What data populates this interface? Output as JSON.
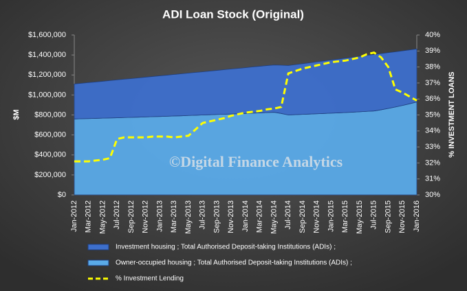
{
  "chart_data": {
    "type": "stacked_area_line",
    "title": "ADI Loan Stock (Original)",
    "y_label": "$M",
    "y2_label": "% INVESTMENT LOANS",
    "annotation": "©Digital Finance Analytics",
    "categories": [
      "Jan-2012",
      null,
      "Mar-2012",
      null,
      "May-2012",
      null,
      "Jul-2012",
      null,
      "Sep-2012",
      null,
      "Nov-2012",
      null,
      "Jan-2013",
      null,
      "Mar-2013",
      null,
      "May-2013",
      null,
      "Jul-2013",
      null,
      "Sep-2013",
      null,
      "Nov-2013",
      null,
      "Jan-2014",
      null,
      "Mar-2014",
      null,
      "May-2014",
      null,
      "Jul-2014",
      null,
      "Sep-2014",
      null,
      "Nov-2014",
      null,
      "Jan-2015",
      null,
      "Mar-2015",
      null,
      "May-2015",
      null,
      "Jul-2015",
      null,
      "Sep-2015",
      null,
      "Nov-2015",
      null,
      "Jan-2016"
    ],
    "series": [
      {
        "name": "Investment housing ;  Total Authorised Deposit-taking Institutions (ADIs) ;",
        "color": "#3d6fcc",
        "kind": "area",
        "values": [
          350000,
          355000,
          360000,
          364000,
          369000,
          374000,
          379000,
          384000,
          388000,
          393000,
          398000,
          402000,
          407000,
          411000,
          415000,
          420000,
          424000,
          429000,
          432000,
          437000,
          441000,
          446000,
          450000,
          454000,
          458000,
          463000,
          466000,
          470000,
          473000,
          483000,
          495000,
          501000,
          507000,
          513000,
          520000,
          526000,
          532000,
          538000,
          544000,
          549000,
          555000,
          560000,
          565000,
          562000,
          558000,
          552000,
          546000,
          539000,
          530000
        ]
      },
      {
        "name": "Owner-occupied housing ;  Total Authorised Deposit-taking Institutions (ADIs) ;",
        "color": "#5aaae8",
        "kind": "area",
        "values": [
          760000,
          762000,
          764000,
          766000,
          768000,
          770000,
          772000,
          774000,
          776000,
          778000,
          780000,
          783000,
          785000,
          787000,
          790000,
          792000,
          795000,
          797000,
          800000,
          802000,
          805000,
          807000,
          810000,
          812000,
          815000,
          818000,
          821000,
          824000,
          827000,
          815000,
          800000,
          803000,
          806000,
          809000,
          812000,
          815000,
          818000,
          821000,
          824000,
          828000,
          832000,
          836000,
          840000,
          852000,
          865000,
          880000,
          895000,
          912000,
          930000
        ]
      },
      {
        "name": "% Investment Lending",
        "color": "#ffff00",
        "kind": "line",
        "axis": "y2",
        "values": [
          32.1,
          32.1,
          32.1,
          32.15,
          32.2,
          32.3,
          33.5,
          33.6,
          33.6,
          33.6,
          33.6,
          33.65,
          33.65,
          33.65,
          33.6,
          33.65,
          33.7,
          34.1,
          34.5,
          34.6,
          34.7,
          34.8,
          34.95,
          35.05,
          35.15,
          35.2,
          35.25,
          35.35,
          35.4,
          35.5,
          37.6,
          37.75,
          37.9,
          38.0,
          38.1,
          38.2,
          38.3,
          38.35,
          38.4,
          38.5,
          38.6,
          38.8,
          38.9,
          38.6,
          38.0,
          36.6,
          36.4,
          36.15,
          35.9
        ]
      }
    ],
    "ylim": [
      0,
      1600000
    ],
    "yticks": [
      {
        "value": 0,
        "label": "$0"
      },
      {
        "value": 200000,
        "label": "$200,000"
      },
      {
        "value": 400000,
        "label": "$400,000"
      },
      {
        "value": 600000,
        "label": "$600,000"
      },
      {
        "value": 800000,
        "label": "$800,000"
      },
      {
        "value": 1000000,
        "label": "$1,000,000"
      },
      {
        "value": 1200000,
        "label": "$1,200,000"
      },
      {
        "value": 1400000,
        "label": "$1,400,000"
      },
      {
        "value": 1600000,
        "label": "$1,600,000"
      }
    ],
    "y2lim": [
      30,
      40
    ],
    "y2ticks": [
      {
        "value": 30,
        "label": "30%"
      },
      {
        "value": 31,
        "label": "31%"
      },
      {
        "value": 32,
        "label": "32%"
      },
      {
        "value": 33,
        "label": "33%"
      },
      {
        "value": 34,
        "label": "34%"
      },
      {
        "value": 35,
        "label": "35%"
      },
      {
        "value": 36,
        "label": "36%"
      },
      {
        "value": 37,
        "label": "37%"
      },
      {
        "value": 38,
        "label": "38%"
      },
      {
        "value": 39,
        "label": "39%"
      },
      {
        "value": 40,
        "label": "40%"
      }
    ],
    "grid": false,
    "legend": "bottom"
  }
}
